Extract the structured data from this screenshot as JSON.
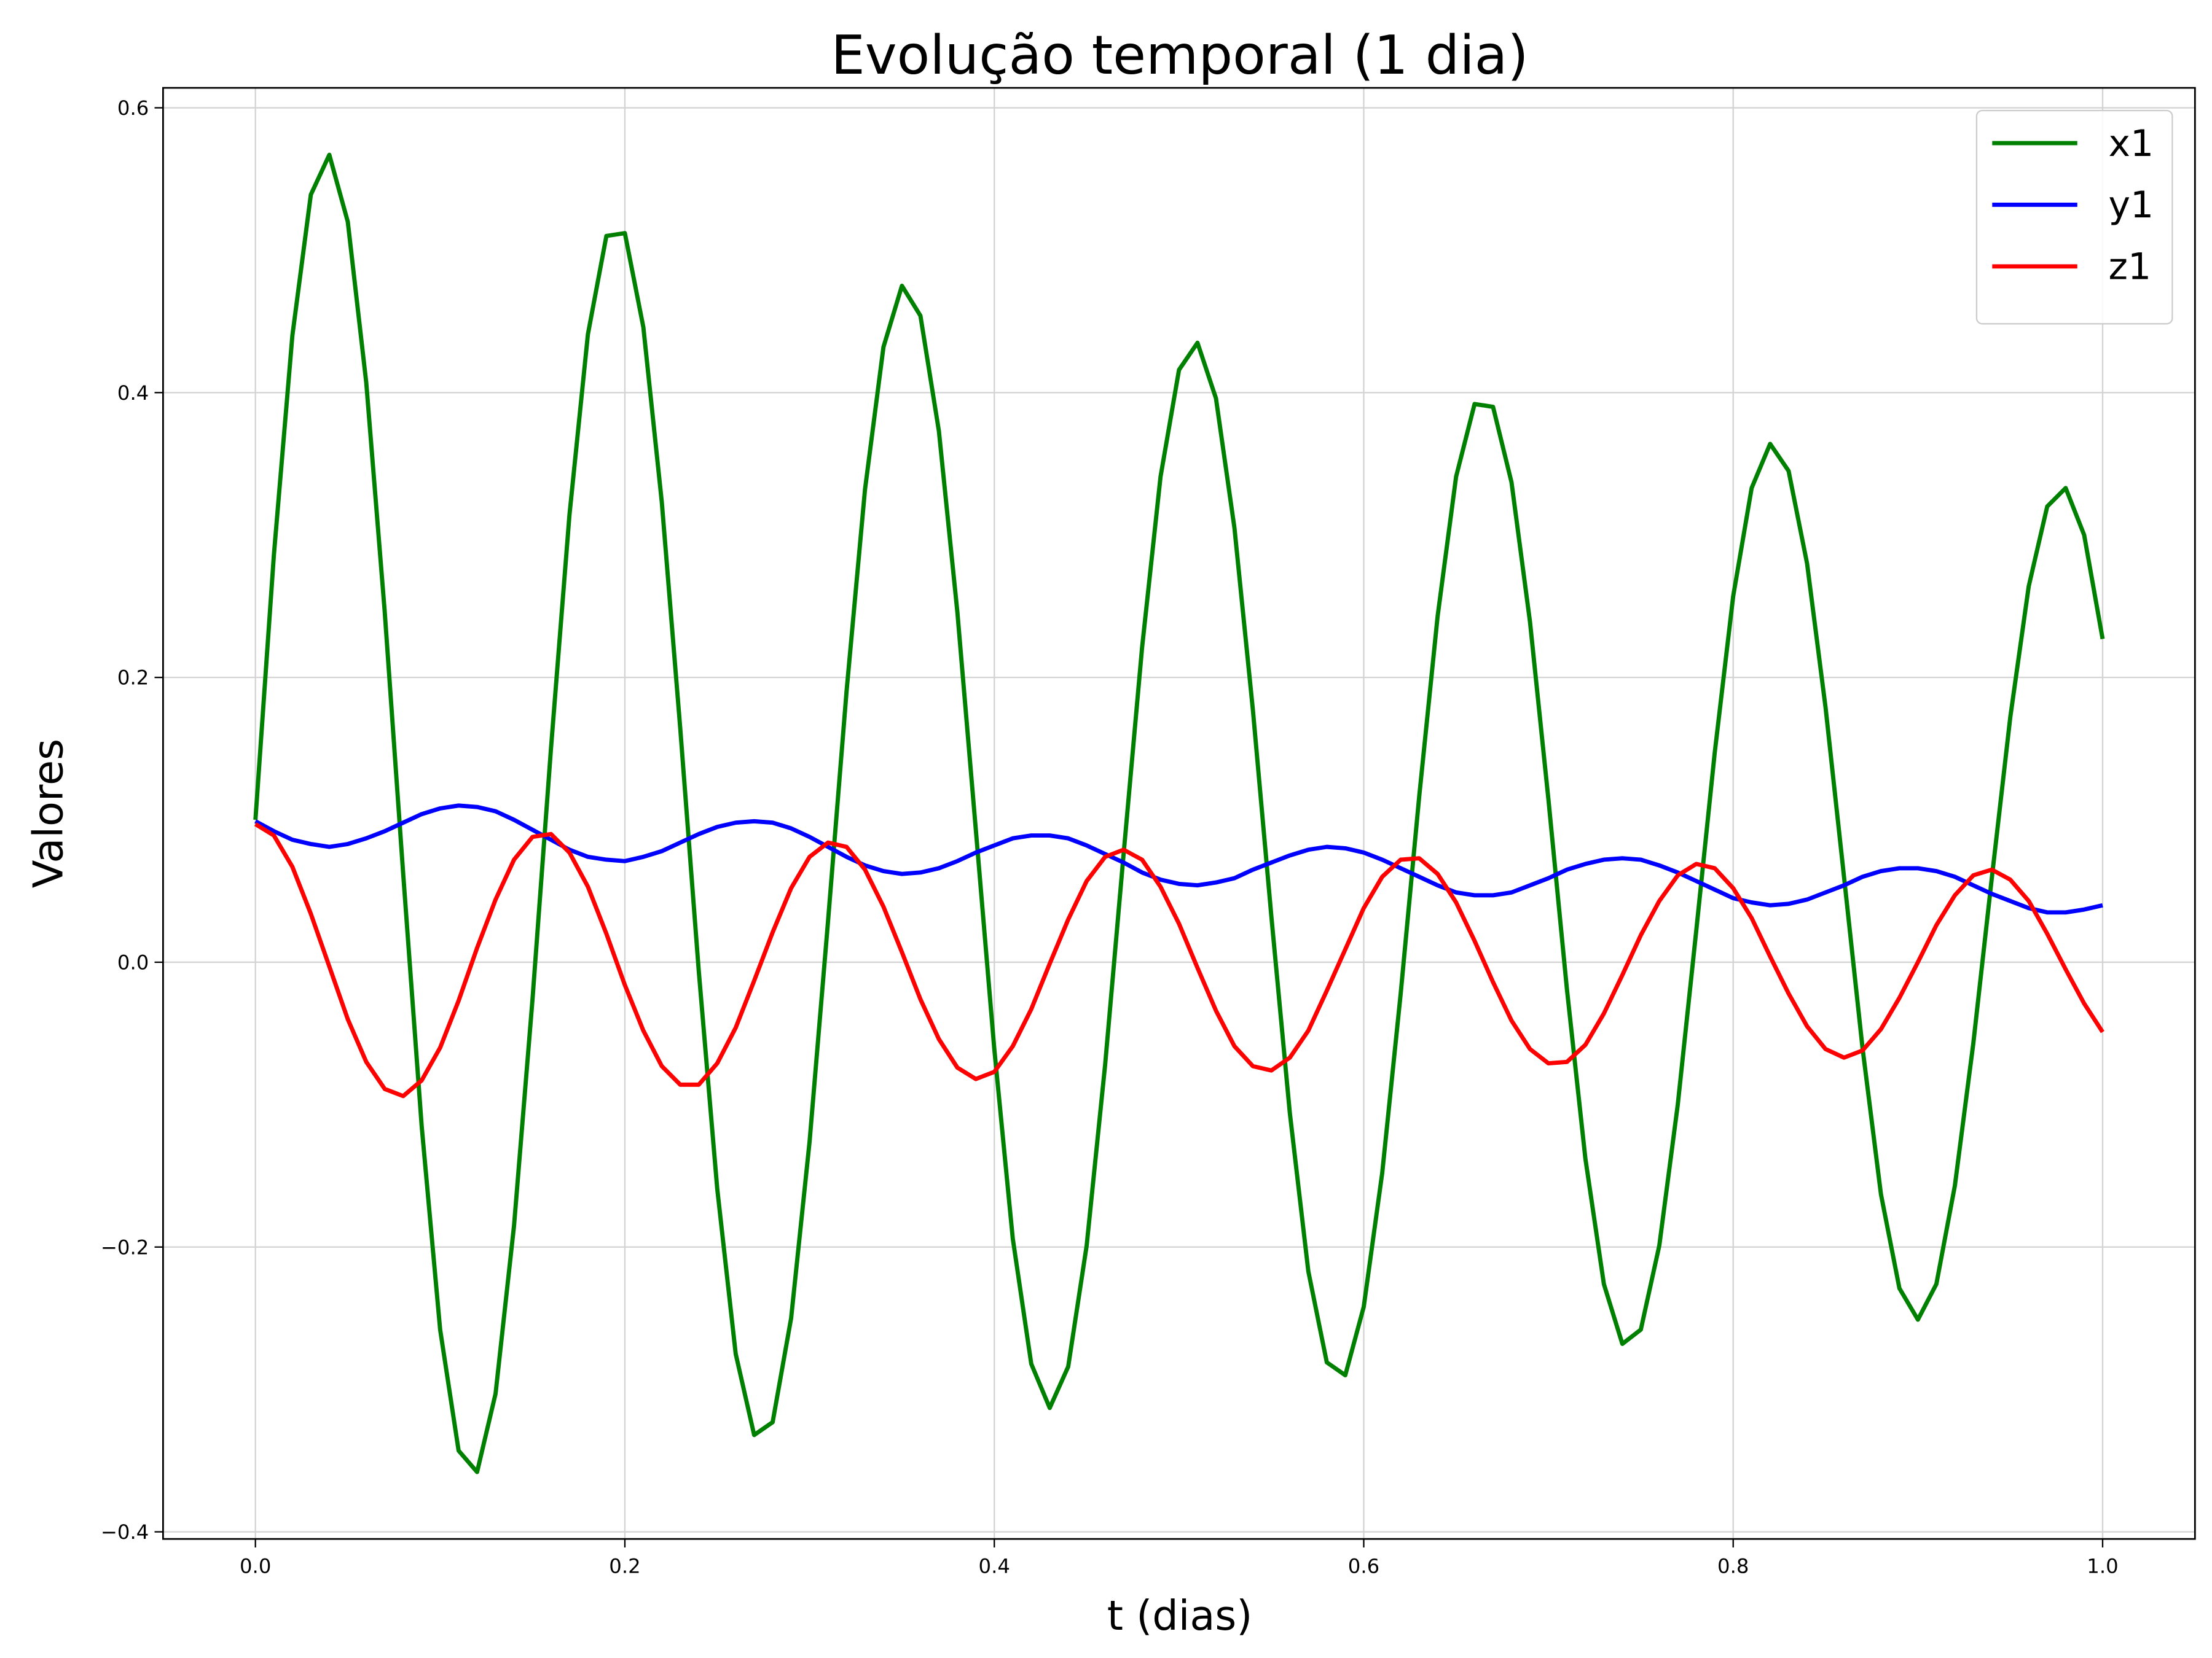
{
  "chart_data": {
    "type": "line",
    "title": "Evolução temporal (1 dia)",
    "xlabel": "t (dias)",
    "ylabel": "Valores",
    "x": [
      0,
      0.01,
      0.02,
      0.03,
      0.04,
      0.05,
      0.06,
      0.07,
      0.08,
      0.09,
      0.1,
      0.11,
      0.12,
      0.13,
      0.14,
      0.15,
      0.16,
      0.17,
      0.18,
      0.19,
      0.2,
      0.21,
      0.22,
      0.23,
      0.24,
      0.25,
      0.26,
      0.27,
      0.28,
      0.29,
      0.3,
      0.31,
      0.32,
      0.33,
      0.34,
      0.35,
      0.36,
      0.37,
      0.38,
      0.39,
      0.4,
      0.41,
      0.42,
      0.43,
      0.44,
      0.45,
      0.46,
      0.47,
      0.48,
      0.49,
      0.5,
      0.51,
      0.52,
      0.53,
      0.54,
      0.55,
      0.56,
      0.57,
      0.58,
      0.59,
      0.6,
      0.61,
      0.62,
      0.63,
      0.64,
      0.65,
      0.66,
      0.67,
      0.68,
      0.69,
      0.7,
      0.71,
      0.72,
      0.73,
      0.74,
      0.75,
      0.76,
      0.77,
      0.78,
      0.79,
      0.8,
      0.81,
      0.82,
      0.83,
      0.84,
      0.85,
      0.86,
      0.87,
      0.88,
      0.89,
      0.9,
      0.91,
      0.92,
      0.93,
      0.94,
      0.95,
      0.96,
      0.97,
      0.98,
      0.99,
      1
    ],
    "series": [
      {
        "name": "x1",
        "color": "#008000",
        "values": [
          0.1,
          0.286,
          0.44,
          0.539,
          0.567,
          0.52,
          0.407,
          0.246,
          0.062,
          -0.115,
          -0.258,
          -0.343,
          -0.358,
          -0.303,
          -0.185,
          -0.026,
          0.15,
          0.314,
          0.441,
          0.51,
          0.512,
          0.446,
          0.323,
          0.164,
          -0.006,
          -0.159,
          -0.275,
          -0.332,
          -0.323,
          -0.25,
          -0.126,
          0.029,
          0.19,
          0.332,
          0.432,
          0.475,
          0.454,
          0.373,
          0.246,
          0.093,
          -0.061,
          -0.194,
          -0.282,
          -0.313,
          -0.284,
          -0.199,
          -0.072,
          0.076,
          0.221,
          0.341,
          0.416,
          0.435,
          0.396,
          0.305,
          0.177,
          0.032,
          -0.106,
          -0.217,
          -0.281,
          -0.29,
          -0.242,
          -0.148,
          -0.022,
          0.116,
          0.243,
          0.341,
          0.392,
          0.39,
          0.337,
          0.239,
          0.114,
          -0.019,
          -0.138,
          -0.226,
          -0.268,
          -0.258,
          -0.199,
          -0.1,
          0.022,
          0.147,
          0.257,
          0.333,
          0.364,
          0.345,
          0.28,
          0.179,
          0.06,
          -0.06,
          -0.163,
          -0.229,
          -0.251,
          -0.226,
          -0.157,
          -0.057,
          0.059,
          0.172,
          0.264,
          0.32,
          0.333,
          0.3,
          0.227
        ]
      },
      {
        "name": "y1",
        "color": "#0000ff",
        "values": [
          0.099,
          0.092,
          0.086,
          0.083,
          0.081,
          0.083,
          0.087,
          0.092,
          0.098,
          0.104,
          0.108,
          0.11,
          0.109,
          0.106,
          0.1,
          0.093,
          0.086,
          0.079,
          0.074,
          0.072,
          0.071,
          0.074,
          0.078,
          0.084,
          0.09,
          0.095,
          0.098,
          0.099,
          0.098,
          0.094,
          0.088,
          0.081,
          0.074,
          0.068,
          0.064,
          0.062,
          0.063,
          0.066,
          0.071,
          0.077,
          0.082,
          0.087,
          0.089,
          0.089,
          0.087,
          0.082,
          0.076,
          0.07,
          0.063,
          0.058,
          0.055,
          0.054,
          0.056,
          0.059,
          0.065,
          0.07,
          0.075,
          0.079,
          0.081,
          0.08,
          0.077,
          0.072,
          0.066,
          0.06,
          0.054,
          0.049,
          0.047,
          0.047,
          0.049,
          0.054,
          0.059,
          0.065,
          0.069,
          0.072,
          0.073,
          0.072,
          0.068,
          0.063,
          0.057,
          0.051,
          0.045,
          0.042,
          0.04,
          0.041,
          0.044,
          0.049,
          0.054,
          0.06,
          0.064,
          0.066,
          0.066,
          0.064,
          0.06,
          0.054,
          0.048,
          0.043,
          0.038,
          0.035,
          0.035,
          0.037,
          0.04
        ]
      },
      {
        "name": "z1",
        "color": "#ff0000",
        "values": [
          0.097,
          0.089,
          0.067,
          0.034,
          -0.003,
          -0.04,
          -0.07,
          -0.089,
          -0.094,
          -0.083,
          -0.06,
          -0.027,
          0.01,
          0.044,
          0.072,
          0.088,
          0.09,
          0.077,
          0.053,
          0.02,
          -0.016,
          -0.048,
          -0.073,
          -0.086,
          -0.086,
          -0.071,
          -0.046,
          -0.013,
          0.021,
          0.052,
          0.074,
          0.084,
          0.081,
          0.065,
          0.039,
          0.007,
          -0.026,
          -0.054,
          -0.074,
          -0.082,
          -0.077,
          -0.059,
          -0.033,
          -0.001,
          0.03,
          0.057,
          0.074,
          0.079,
          0.072,
          0.053,
          0.027,
          -0.004,
          -0.034,
          -0.059,
          -0.073,
          -0.076,
          -0.067,
          -0.048,
          -0.02,
          0.009,
          0.038,
          0.06,
          0.072,
          0.073,
          0.062,
          0.042,
          0.015,
          -0.014,
          -0.041,
          -0.061,
          -0.071,
          -0.07,
          -0.058,
          -0.036,
          -0.009,
          0.019,
          0.043,
          0.061,
          0.069,
          0.066,
          0.052,
          0.031,
          0.004,
          -0.022,
          -0.045,
          -0.061,
          -0.067,
          -0.062,
          -0.047,
          -0.025,
          0.0,
          0.026,
          0.047,
          0.061,
          0.065,
          0.058,
          0.043,
          0.02,
          -0.005,
          -0.029,
          -0.049
        ]
      }
    ],
    "xlim": [
      -0.05,
      1.05
    ],
    "ylim": [
      -0.405,
      0.614
    ],
    "xticks": [
      {
        "value": 0,
        "label": "0.0"
      },
      {
        "value": 0.2,
        "label": "0.2"
      },
      {
        "value": 0.4,
        "label": "0.4"
      },
      {
        "value": 0.6,
        "label": "0.6"
      },
      {
        "value": 0.8,
        "label": "0.8"
      },
      {
        "value": 1,
        "label": "1.0"
      }
    ],
    "yticks": [
      {
        "value": -0.4,
        "label": "−0.4"
      },
      {
        "value": -0.2,
        "label": "−0.2"
      },
      {
        "value": 0,
        "label": "0.0"
      },
      {
        "value": 0.2,
        "label": "0.2"
      },
      {
        "value": 0.4,
        "label": "0.4"
      },
      {
        "value": 0.6,
        "label": "0.6"
      }
    ],
    "grid": true,
    "legend": "upper right"
  }
}
